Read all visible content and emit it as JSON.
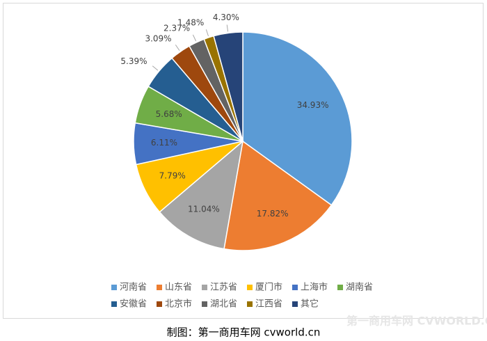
{
  "chart_data": {
    "type": "pie",
    "categories": [
      "河南省",
      "山东省",
      "江苏省",
      "厦门市",
      "上海市",
      "湖南省",
      "安徽省",
      "北京市",
      "湖北省",
      "江西省",
      "其它"
    ],
    "values": [
      34.93,
      17.82,
      11.04,
      7.79,
      6.11,
      5.68,
      5.39,
      3.09,
      2.37,
      1.48,
      4.3
    ],
    "value_labels": [
      "34.93%",
      "17.82%",
      "11.04%",
      "7.79%",
      "6.11%",
      "5.68%",
      "5.39%",
      "3.09%",
      "2.37%",
      "1.48%",
      "4.30%"
    ],
    "colors": [
      "#5b9bd5",
      "#ed7d31",
      "#a5a5a5",
      "#ffc000",
      "#4472c4",
      "#70ad47",
      "#255e91",
      "#9e480e",
      "#636363",
      "#997300",
      "#264478"
    ],
    "legend": "bottom"
  },
  "caption": "制图：第一商用车网 cvworld.cn",
  "watermark": "第一商用车网 CVWORLD.CN"
}
